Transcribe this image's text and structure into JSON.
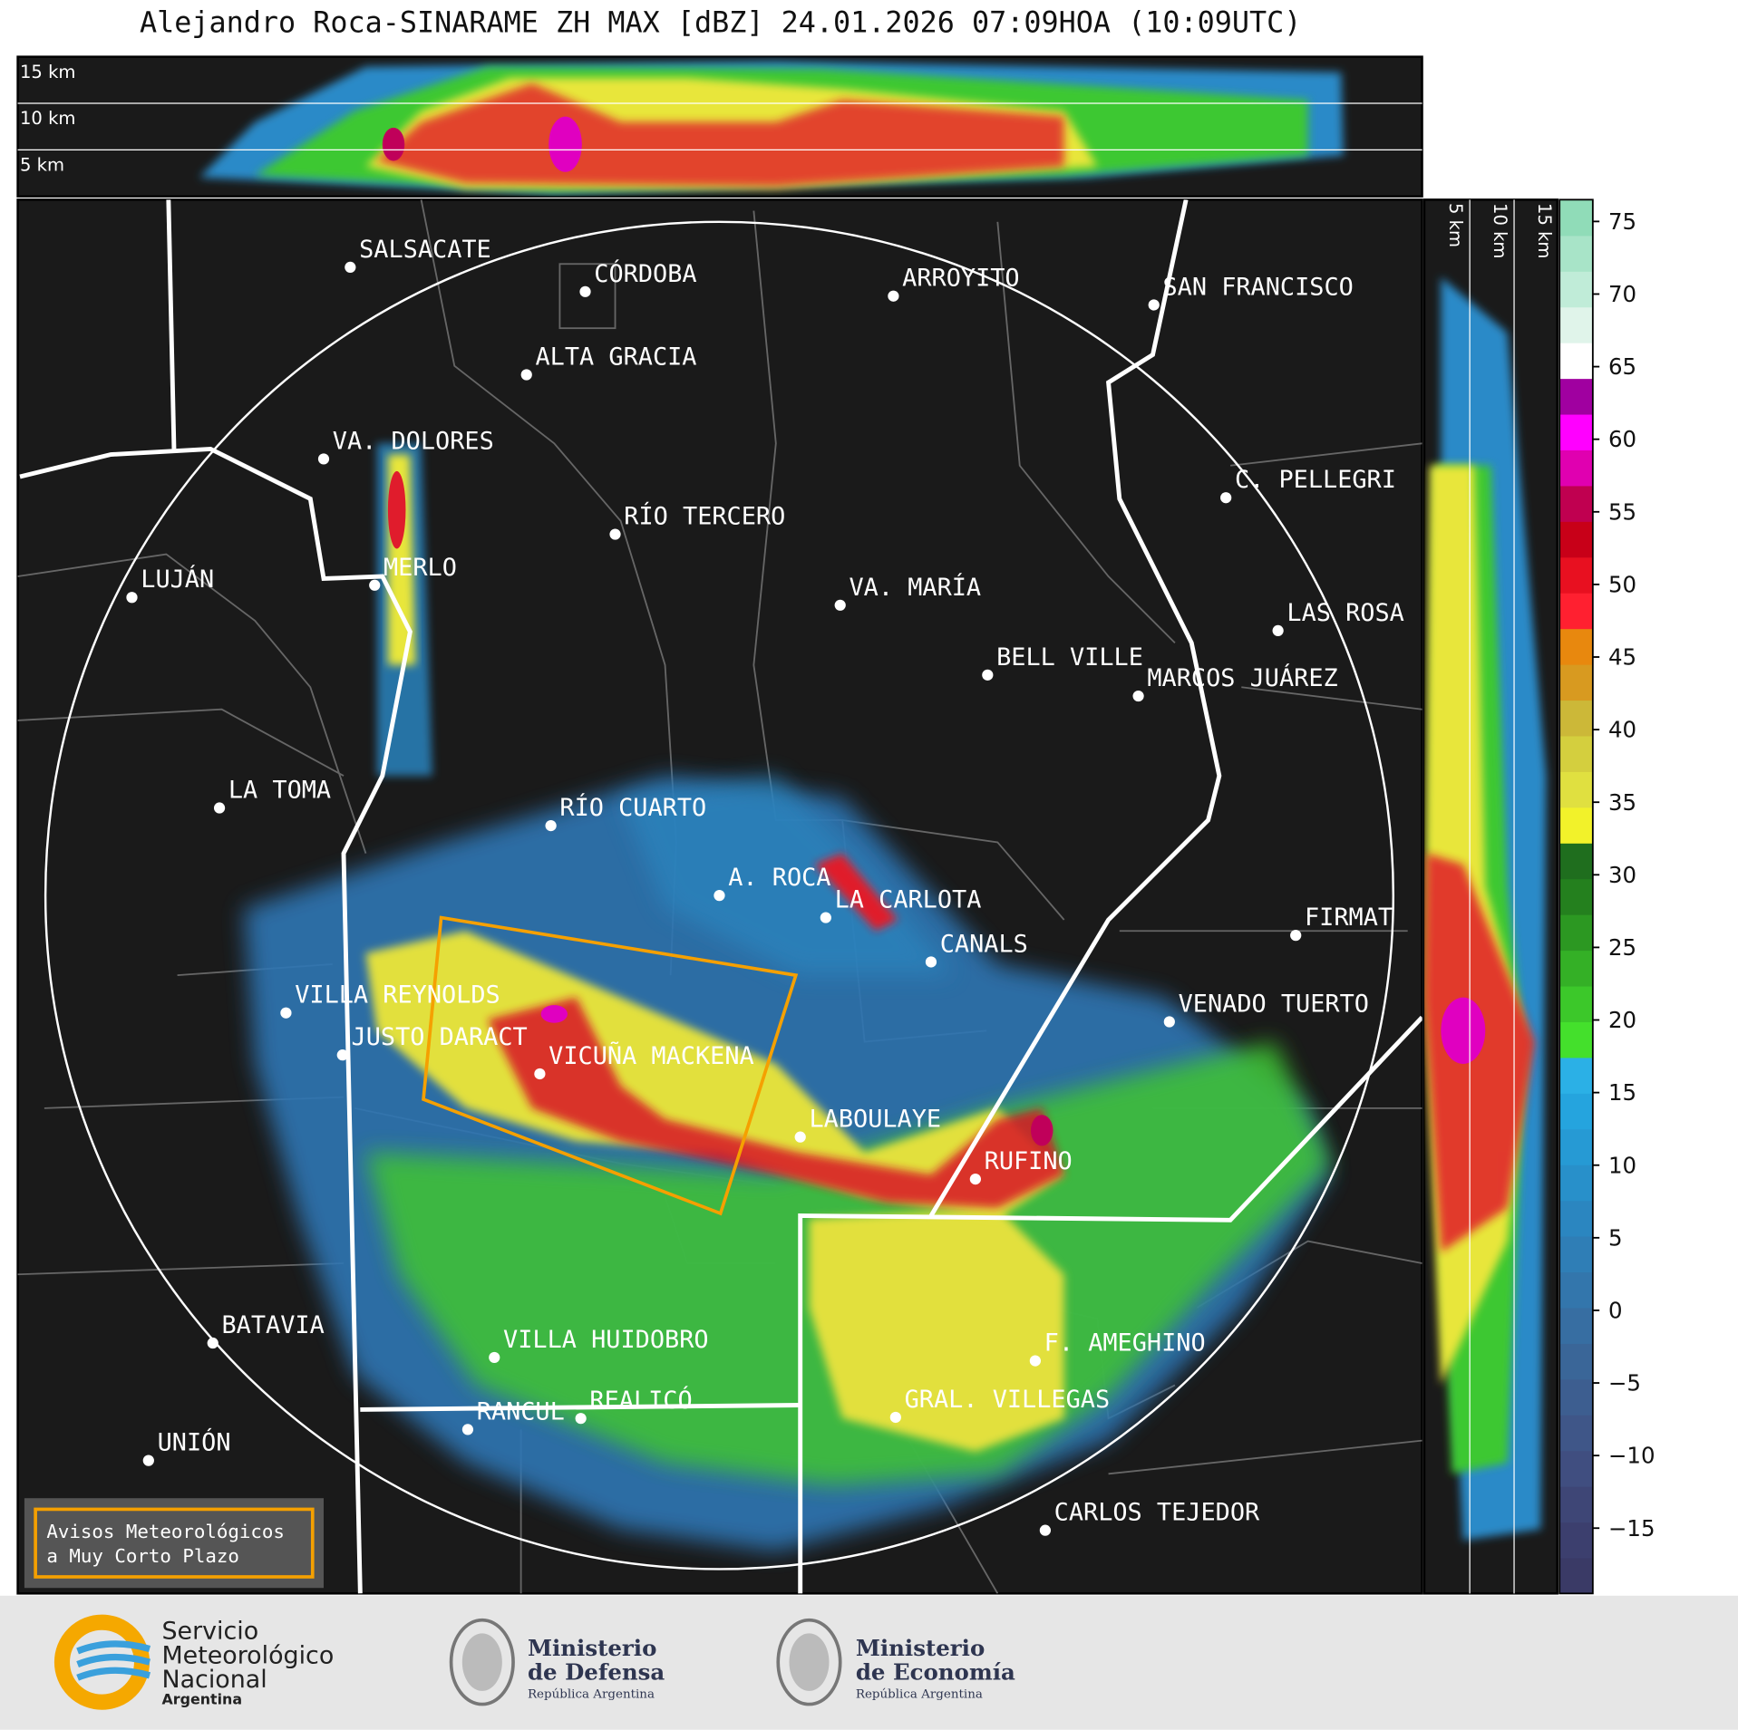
{
  "header": {
    "title": "Alejandro Roca-SINARAME ZH MAX [dBZ] 24.01.2026 07:09HOA (10:09UTC)"
  },
  "cross_section_top": {
    "height_labels": [
      "15 km",
      "10 km",
      "5 km"
    ]
  },
  "cross_section_side": {
    "height_labels": [
      "5 km",
      "10 km",
      "15 km"
    ]
  },
  "map": {
    "cities": [
      "SALSACATE",
      "CÓRDOBA",
      "ARROYITO",
      "SAN FRANCISCO",
      "ALTA GRACIA",
      "VA. DOLORES",
      "C. PELLEGRI",
      "RÍO TERCERO",
      "LUJÁN",
      "MERLO",
      "VA. MARÍA",
      "LAS ROSA",
      "BELL VILLE",
      "MARCOS JUÁREZ",
      "LA TOMA",
      "RÍO CUARTO",
      "A. ROCA",
      "LA CARLOTA",
      "FIRMAT",
      "CANALS",
      "VILLA REYNOLDS",
      "VENADO TUERTO",
      "JUSTO DARACT",
      "VICUÑA MACKENA",
      "LABOULAYE",
      "RUFINO",
      "BATAVIA",
      "VILLA HUIDOBRO",
      "F. AMEGHINO",
      "RANCUL",
      "REALICÓ",
      "GRAL. VILLEGAS",
      "UNIÓN",
      "CARLOS TEJEDOR"
    ]
  },
  "colorbar": {
    "ylim": [
      -19.5,
      76.5
    ],
    "ticks": [
      75,
      70,
      65,
      60,
      55,
      50,
      45,
      40,
      35,
      30,
      25,
      20,
      15,
      10,
      5,
      0,
      {
        "value": -5,
        "label": "−5"
      },
      {
        "value": -10,
        "label": "−10"
      },
      {
        "value": -15,
        "label": "−15"
      }
    ],
    "colors": [
      "#3a3a66",
      "#3c3f6e",
      "#3e4676",
      "#404e80",
      "#3f5688",
      "#3d5e90",
      "#3a6698",
      "#376ea2",
      "#3376ac",
      "#2f7eb6",
      "#2b86c0",
      "#2890ca",
      "#269ad4",
      "#25a4de",
      "#2bb0e6",
      "#44e02c",
      "#3cc82a",
      "#34b026",
      "#2c9822",
      "#24801e",
      "#1f6e1e",
      "#f2f22a",
      "#e0e040",
      "#d4cf3e",
      "#ccb838",
      "#d89a20",
      "#e8880e",
      "#ff2030",
      "#e81020",
      "#c80018",
      "#c00050",
      "#e000b0",
      "#ff00ff",
      "#a000a0",
      "#ffffff",
      "#e0f4ea",
      "#c0ecd8",
      "#a8e4c8",
      "#90dcb8"
    ]
  },
  "notice": {
    "lines": [
      "Avisos Meteorológicos",
      "a Muy Corto Plazo"
    ]
  },
  "footer": {
    "logos": [
      {
        "lines": [
          "Servicio",
          "Meteorológico",
          "Nacional",
          "Argentina"
        ]
      },
      {
        "lines": [
          "Ministerio",
          "de Defensa",
          "República Argentina"
        ]
      },
      {
        "lines": [
          "Ministerio",
          "de Economía",
          "República Argentina"
        ]
      }
    ]
  }
}
